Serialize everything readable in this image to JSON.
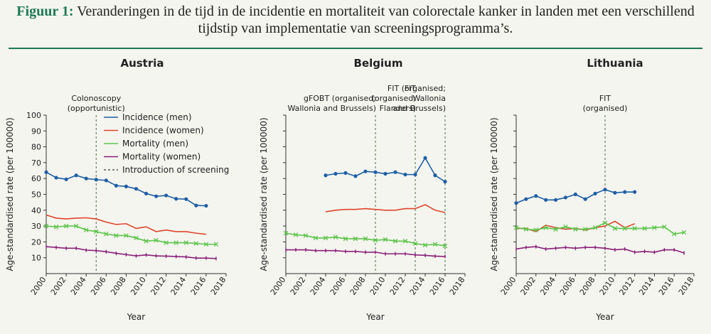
{
  "figure": {
    "label": "Figuur 1:",
    "title_line1": "Veranderingen in de tijd in de incidentie en mortaliteit van colorectale kanker in landen met een verschillend",
    "title_line2": "tijdstip van implementatie van screeningsprogramma’s."
  },
  "legend": [
    {
      "name": "Incidence (men)",
      "color": "#1f5fa6",
      "style": "solid"
    },
    {
      "name": "Incidence (women)",
      "color": "#e0452a",
      "style": "solid"
    },
    {
      "name": "Mortality (men)",
      "color": "#5cc44a",
      "style": "solid"
    },
    {
      "name": "Mortality (women)",
      "color": "#8a1f7a",
      "style": "solid"
    },
    {
      "name": "Introduction of screening",
      "color": "#555555",
      "style": "dashed"
    }
  ],
  "chart_data": [
    {
      "type": "line",
      "title": "Austria",
      "xlabel": "Year",
      "ylabel": "Age-standardised rate (per 100000)",
      "xlim": [
        2000,
        2018
      ],
      "ylim": [
        0,
        100
      ],
      "xticks": [
        2000,
        2002,
        2004,
        2006,
        2008,
        2010,
        2012,
        2014,
        2016,
        2018
      ],
      "yticks": [
        10,
        20,
        30,
        40,
        50,
        60,
        70,
        80,
        90,
        100
      ],
      "y_tick_labels": true,
      "legend": "top-right",
      "series": [
        {
          "name": "Incidence (men)",
          "color": "#1f5fa6",
          "marker": "circle",
          "points": [
            [
              2000,
              64
            ],
            [
              2001,
              60.5
            ],
            [
              2002,
              59.5
            ],
            [
              2003,
              62
            ],
            [
              2004,
              60
            ],
            [
              2005,
              59.3
            ],
            [
              2006,
              58.8
            ],
            [
              2007,
              55.5
            ],
            [
              2008,
              55
            ],
            [
              2009,
              53.5
            ],
            [
              2010,
              50.5
            ],
            [
              2011,
              48.8
            ],
            [
              2012,
              49.3
            ],
            [
              2013,
              47.2
            ],
            [
              2014,
              47
            ],
            [
              2015,
              43
            ],
            [
              2016,
              42.8
            ]
          ]
        },
        {
          "name": "Incidence (women)",
          "color": "#e0452a",
          "marker": "none",
          "points": [
            [
              2000,
              37
            ],
            [
              2001,
              35
            ],
            [
              2002,
              34.5
            ],
            [
              2003,
              35
            ],
            [
              2004,
              35.2
            ],
            [
              2005,
              34.5
            ],
            [
              2006,
              32.5
            ],
            [
              2007,
              31
            ],
            [
              2008,
              31.5
            ],
            [
              2009,
              28.5
            ],
            [
              2010,
              29.5
            ],
            [
              2011,
              26.5
            ],
            [
              2012,
              27.5
            ],
            [
              2013,
              26.5
            ],
            [
              2014,
              26.5
            ],
            [
              2015,
              25.5
            ],
            [
              2016,
              24.8
            ]
          ]
        },
        {
          "name": "Mortality (men)",
          "color": "#5cc44a",
          "marker": "x",
          "points": [
            [
              2000,
              30
            ],
            [
              2001,
              29.5
            ],
            [
              2002,
              30
            ],
            [
              2003,
              30
            ],
            [
              2004,
              27.5
            ],
            [
              2005,
              26.5
            ],
            [
              2006,
              25
            ],
            [
              2007,
              24
            ],
            [
              2008,
              24
            ],
            [
              2009,
              22.5
            ],
            [
              2010,
              20.5
            ],
            [
              2011,
              21
            ],
            [
              2012,
              19.5
            ],
            [
              2013,
              19.5
            ],
            [
              2014,
              19.5
            ],
            [
              2015,
              19
            ],
            [
              2016,
              18.5
            ],
            [
              2017,
              18.5
            ]
          ]
        },
        {
          "name": "Mortality (women)",
          "color": "#8a1f7a",
          "marker": "tick",
          "points": [
            [
              2000,
              17
            ],
            [
              2001,
              16.5
            ],
            [
              2002,
              16
            ],
            [
              2003,
              16
            ],
            [
              2004,
              14.8
            ],
            [
              2005,
              14.5
            ],
            [
              2006,
              13.8
            ],
            [
              2007,
              12.8
            ],
            [
              2008,
              12
            ],
            [
              2009,
              11.2
            ],
            [
              2010,
              11.8
            ],
            [
              2011,
              11.2
            ],
            [
              2012,
              11
            ],
            [
              2013,
              10.8
            ],
            [
              2014,
              10.5
            ],
            [
              2015,
              9.8
            ],
            [
              2016,
              9.8
            ],
            [
              2017,
              9.5
            ]
          ]
        }
      ],
      "screening": [
        {
          "year": 2005,
          "label_lines": [
            "Colonoscopy",
            "(opportunistic)"
          ]
        }
      ]
    },
    {
      "type": "line",
      "title": "Belgium",
      "xlabel": "Year",
      "ylabel": "Age-standardised rate (per 100000)",
      "xlim": [
        2000,
        2018
      ],
      "ylim": [
        0,
        100
      ],
      "xticks": [
        2000,
        2002,
        2004,
        2006,
        2008,
        2010,
        2012,
        2014,
        2016,
        2018
      ],
      "yticks": [
        10,
        20,
        30,
        40,
        50,
        60,
        70,
        80,
        90,
        100
      ],
      "y_tick_labels": false,
      "series": [
        {
          "name": "Incidence (men)",
          "color": "#1f5fa6",
          "marker": "circle",
          "points": [
            [
              2004,
              62
            ],
            [
              2005,
              63
            ],
            [
              2006,
              63.5
            ],
            [
              2007,
              61.5
            ],
            [
              2008,
              64.5
            ],
            [
              2009,
              64
            ],
            [
              2010,
              63
            ],
            [
              2011,
              64
            ],
            [
              2012,
              62.5
            ],
            [
              2013,
              62.5
            ],
            [
              2014,
              73
            ],
            [
              2015,
              62
            ],
            [
              2016,
              58
            ]
          ]
        },
        {
          "name": "Incidence (women)",
          "color": "#e0452a",
          "marker": "none",
          "points": [
            [
              2004,
              39
            ],
            [
              2005,
              40
            ],
            [
              2006,
              40.5
            ],
            [
              2007,
              40.5
            ],
            [
              2008,
              41
            ],
            [
              2009,
              40.5
            ],
            [
              2010,
              40
            ],
            [
              2011,
              40
            ],
            [
              2012,
              41
            ],
            [
              2013,
              41
            ],
            [
              2014,
              43.5
            ],
            [
              2015,
              40
            ],
            [
              2016,
              38.5
            ]
          ]
        },
        {
          "name": "Mortality (men)",
          "color": "#5cc44a",
          "marker": "x",
          "points": [
            [
              2000,
              25.5
            ],
            [
              2001,
              24.5
            ],
            [
              2002,
              24
            ],
            [
              2003,
              22.5
            ],
            [
              2004,
              22.5
            ],
            [
              2005,
              23
            ],
            [
              2006,
              22
            ],
            [
              2007,
              22
            ],
            [
              2008,
              22
            ],
            [
              2009,
              21
            ],
            [
              2010,
              21.5
            ],
            [
              2011,
              20.5
            ],
            [
              2012,
              20.5
            ],
            [
              2013,
              19
            ],
            [
              2014,
              18
            ],
            [
              2015,
              18.5
            ],
            [
              2016,
              17.5
            ]
          ]
        },
        {
          "name": "Mortality (women)",
          "color": "#8a1f7a",
          "marker": "tick",
          "points": [
            [
              2000,
              15
            ],
            [
              2001,
              15
            ],
            [
              2002,
              15
            ],
            [
              2003,
              14.5
            ],
            [
              2004,
              14.5
            ],
            [
              2005,
              14.5
            ],
            [
              2006,
              14
            ],
            [
              2007,
              14
            ],
            [
              2008,
              13.5
            ],
            [
              2009,
              13.5
            ],
            [
              2010,
              12.5
            ],
            [
              2011,
              12.5
            ],
            [
              2012,
              12.5
            ],
            [
              2013,
              11.8
            ],
            [
              2014,
              11.5
            ],
            [
              2015,
              11
            ],
            [
              2016,
              10.8
            ]
          ]
        }
      ],
      "screening": [
        {
          "year": 2009,
          "label_lines": [
            "gFOBT (organised;",
            "Wallonia and Brussels)"
          ],
          "anchor": "end"
        },
        {
          "year": 2013,
          "label_lines": [
            "FIT",
            "(organised;",
            "Flanders)"
          ],
          "anchor": "end"
        },
        {
          "year": 2016,
          "label_lines": [
            "FIT (organised;",
            "Wallonia",
            "and Brussels)"
          ],
          "anchor": "end"
        }
      ]
    },
    {
      "type": "line",
      "title": "Lithuania",
      "xlabel": "Year",
      "ylabel": "Age-standardised rate (per 100000)",
      "xlim": [
        2000,
        2018
      ],
      "ylim": [
        0,
        100
      ],
      "xticks": [
        2000,
        2002,
        2004,
        2006,
        2008,
        2010,
        2012,
        2014,
        2016,
        2018
      ],
      "yticks": [
        10,
        20,
        30,
        40,
        50,
        60,
        70,
        80,
        90,
        100
      ],
      "y_tick_labels": false,
      "series": [
        {
          "name": "Incidence (men)",
          "color": "#1f5fa6",
          "marker": "circle",
          "points": [
            [
              2000,
              44.5
            ],
            [
              2001,
              47
            ],
            [
              2002,
              49
            ],
            [
              2003,
              46.5
            ],
            [
              2004,
              46.5
            ],
            [
              2005,
              48
            ],
            [
              2006,
              50
            ],
            [
              2007,
              47
            ],
            [
              2008,
              50.5
            ],
            [
              2009,
              53
            ],
            [
              2010,
              51
            ],
            [
              2011,
              51.5
            ],
            [
              2012,
              51.5
            ]
          ]
        },
        {
          "name": "Incidence (women)",
          "color": "#e0452a",
          "marker": "none",
          "points": [
            [
              2000,
              28.5
            ],
            [
              2001,
              28.5
            ],
            [
              2002,
              26.5
            ],
            [
              2003,
              30.5
            ],
            [
              2004,
              29
            ],
            [
              2005,
              28
            ],
            [
              2006,
              28.5
            ],
            [
              2007,
              27.5
            ],
            [
              2008,
              29
            ],
            [
              2009,
              30
            ],
            [
              2010,
              33
            ],
            [
              2011,
              29
            ],
            [
              2012,
              31.5
            ]
          ]
        },
        {
          "name": "Mortality (men)",
          "color": "#5cc44a",
          "marker": "x",
          "points": [
            [
              2000,
              29
            ],
            [
              2001,
              28
            ],
            [
              2002,
              27.5
            ],
            [
              2003,
              29
            ],
            [
              2004,
              28
            ],
            [
              2005,
              29.5
            ],
            [
              2006,
              28
            ],
            [
              2007,
              28
            ],
            [
              2008,
              29
            ],
            [
              2009,
              32
            ],
            [
              2010,
              28.5
            ],
            [
              2011,
              28.5
            ],
            [
              2012,
              28.5
            ],
            [
              2013,
              28.5
            ],
            [
              2014,
              29
            ],
            [
              2015,
              29.5
            ],
            [
              2016,
              25
            ],
            [
              2017,
              26
            ]
          ]
        },
        {
          "name": "Mortality (women)",
          "color": "#8a1f7a",
          "marker": "tick",
          "points": [
            [
              2000,
              15.5
            ],
            [
              2001,
              16.5
            ],
            [
              2002,
              17
            ],
            [
              2003,
              15.5
            ],
            [
              2004,
              16
            ],
            [
              2005,
              16.5
            ],
            [
              2006,
              16
            ],
            [
              2007,
              16.5
            ],
            [
              2008,
              16.5
            ],
            [
              2009,
              16
            ],
            [
              2010,
              15
            ],
            [
              2011,
              15.5
            ],
            [
              2012,
              13.5
            ],
            [
              2013,
              14
            ],
            [
              2014,
              13.5
            ],
            [
              2015,
              15
            ],
            [
              2016,
              15
            ],
            [
              2017,
              13
            ]
          ]
        }
      ],
      "screening": [
        {
          "year": 2009,
          "label_lines": [
            "FIT",
            "(organised)"
          ],
          "anchor": "middle"
        }
      ]
    }
  ]
}
